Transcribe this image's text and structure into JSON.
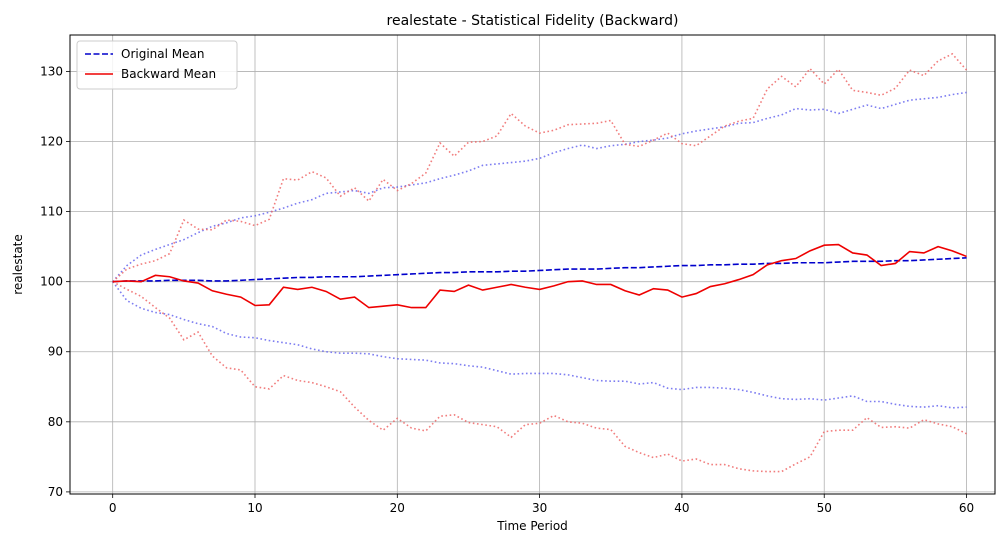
{
  "chart_data": {
    "type": "line",
    "title": "realestate - Statistical Fidelity (Backward)",
    "xlabel": "Time Period",
    "ylabel": "realestate",
    "xlim": [
      -3,
      62
    ],
    "ylim": [
      69.7,
      135.2
    ],
    "xticks": [
      0,
      10,
      20,
      30,
      40,
      50,
      60
    ],
    "yticks": [
      70,
      80,
      90,
      100,
      110,
      120,
      130
    ],
    "grid": true,
    "legend_position": "top-left",
    "series": [
      {
        "name": "Original Mean",
        "color": "#0000cc",
        "style": "dashed",
        "in_legend": true,
        "x_start": 0,
        "values": [
          100.0,
          100.1,
          100.1,
          100.1,
          100.2,
          100.2,
          100.2,
          100.1,
          100.1,
          100.2,
          100.3,
          100.4,
          100.5,
          100.6,
          100.6,
          100.7,
          100.7,
          100.7,
          100.8,
          100.9,
          101.0,
          101.1,
          101.2,
          101.3,
          101.3,
          101.4,
          101.4,
          101.4,
          101.5,
          101.5,
          101.6,
          101.7,
          101.8,
          101.8,
          101.8,
          101.9,
          102.0,
          102.0,
          102.1,
          102.2,
          102.3,
          102.3,
          102.4,
          102.4,
          102.5,
          102.5,
          102.6,
          102.6,
          102.7,
          102.7,
          102.7,
          102.8,
          102.9,
          102.9,
          102.9,
          103.0,
          103.0,
          103.1,
          103.2,
          103.3,
          103.4
        ]
      },
      {
        "name": "Backward Mean",
        "color": "#ee0000",
        "style": "solid",
        "in_legend": true,
        "x_start": 0,
        "values": [
          100.0,
          100.1,
          100.0,
          100.9,
          100.7,
          100.1,
          99.8,
          98.7,
          98.2,
          97.8,
          96.6,
          96.7,
          99.2,
          98.9,
          99.2,
          98.6,
          97.5,
          97.8,
          96.3,
          96.5,
          96.7,
          96.3,
          96.3,
          98.8,
          98.6,
          99.5,
          98.8,
          99.2,
          99.6,
          99.2,
          98.9,
          99.4,
          100.0,
          100.1,
          99.6,
          99.6,
          98.7,
          98.1,
          99.0,
          98.8,
          97.8,
          98.3,
          99.3,
          99.7,
          100.3,
          101.0,
          102.4,
          103.0,
          103.3,
          104.4,
          105.2,
          105.3,
          104.1,
          103.8,
          102.3,
          102.6,
          104.3,
          104.1,
          105.0,
          104.4,
          103.6
        ]
      },
      {
        "name": "",
        "color": "#6666ee",
        "style": "dotted",
        "in_legend": false,
        "x_start": 0,
        "values": [
          100.0,
          102.3,
          103.8,
          104.6,
          105.3,
          106.0,
          107.0,
          107.9,
          108.4,
          109.1,
          109.4,
          109.9,
          110.5,
          111.2,
          111.7,
          112.6,
          112.8,
          113.0,
          112.6,
          113.4,
          113.5,
          113.8,
          114.1,
          114.7,
          115.2,
          115.8,
          116.6,
          116.8,
          117.0,
          117.2,
          117.6,
          118.4,
          119.0,
          119.5,
          119.0,
          119.4,
          119.6,
          120.0,
          120.2,
          120.5,
          121.1,
          121.5,
          121.8,
          122.1,
          122.6,
          122.7,
          123.3,
          123.8,
          124.7,
          124.5,
          124.6,
          124.0,
          124.6,
          125.2,
          124.7,
          125.3,
          125.9,
          126.1,
          126.3,
          126.7,
          127.0
        ]
      },
      {
        "name": "",
        "color": "#6666ee",
        "style": "dotted",
        "in_legend": false,
        "x_start": 0,
        "values": [
          100.0,
          97.3,
          96.2,
          95.6,
          95.3,
          94.6,
          94.0,
          93.6,
          92.6,
          92.1,
          92.0,
          91.6,
          91.3,
          91.0,
          90.4,
          90.0,
          89.8,
          89.8,
          89.7,
          89.3,
          89.0,
          88.9,
          88.8,
          88.4,
          88.3,
          88.0,
          87.8,
          87.3,
          86.8,
          86.9,
          86.9,
          86.9,
          86.7,
          86.3,
          85.9,
          85.8,
          85.8,
          85.4,
          85.6,
          84.8,
          84.6,
          84.9,
          84.9,
          84.8,
          84.6,
          84.2,
          83.7,
          83.3,
          83.2,
          83.3,
          83.1,
          83.4,
          83.7,
          82.9,
          82.9,
          82.5,
          82.2,
          82.1,
          82.3,
          82.0,
          82.1
        ]
      },
      {
        "name": "",
        "color": "#ee6666",
        "style": "dotted",
        "in_legend": false,
        "x_start": 0,
        "values": [
          100.0,
          101.8,
          102.5,
          103.0,
          104.0,
          108.8,
          107.5,
          107.4,
          108.8,
          108.6,
          108.0,
          108.9,
          114.7,
          114.5,
          115.7,
          114.8,
          112.2,
          113.4,
          111.5,
          114.6,
          113.0,
          114.0,
          115.5,
          119.8,
          117.9,
          119.9,
          120.0,
          120.8,
          124.0,
          122.2,
          121.2,
          121.6,
          122.4,
          122.5,
          122.6,
          123.0,
          119.6,
          119.3,
          120.2,
          121.2,
          119.7,
          119.4,
          120.8,
          122.2,
          122.9,
          123.3,
          127.5,
          129.3,
          127.8,
          130.4,
          128.2,
          130.3,
          127.3,
          127.0,
          126.6,
          127.6,
          130.2,
          129.4,
          131.5,
          132.5,
          130.2
        ]
      },
      {
        "name": "",
        "color": "#ee6666",
        "style": "dotted",
        "in_legend": false,
        "x_start": 0,
        "values": [
          100.0,
          98.9,
          97.9,
          96.3,
          94.8,
          91.7,
          92.8,
          89.4,
          87.7,
          87.4,
          85.0,
          84.7,
          86.6,
          85.9,
          85.6,
          85.0,
          84.3,
          82.1,
          80.2,
          78.8,
          80.5,
          79.1,
          78.7,
          80.8,
          81.0,
          79.9,
          79.6,
          79.3,
          77.8,
          79.6,
          79.8,
          80.9,
          80.0,
          79.8,
          79.1,
          78.9,
          76.5,
          75.6,
          74.9,
          75.4,
          74.4,
          74.7,
          73.9,
          73.9,
          73.3,
          73.0,
          72.9,
          72.9,
          74.0,
          75.0,
          78.6,
          78.8,
          78.8,
          80.6,
          79.2,
          79.3,
          79.1,
          80.3,
          79.7,
          79.3,
          78.3
        ]
      }
    ]
  }
}
